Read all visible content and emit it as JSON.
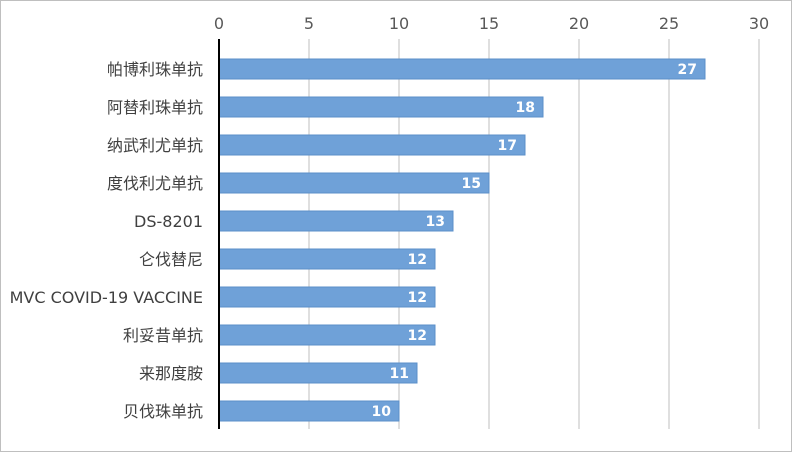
{
  "chart_data": {
    "type": "bar",
    "orientation": "horizontal",
    "categories": [
      "帕博利珠单抗",
      "阿替利珠单抗",
      "纳武利尤单抗",
      "度伐利尤单抗",
      "DS-8201",
      "仑伐替尼",
      "MVC COVID-19 VACCINE",
      "利妥昔单抗",
      "来那度胺",
      "贝伐珠单抗"
    ],
    "values": [
      27,
      18,
      17,
      15,
      13,
      12,
      12,
      12,
      11,
      10
    ],
    "xlim": [
      0,
      30
    ],
    "xticks": [
      0,
      5,
      10,
      15,
      20,
      25,
      30
    ],
    "tick_position": "top",
    "grid": "vertical",
    "data_labels": true,
    "legend": "none",
    "title": "",
    "xlabel": "",
    "ylabel": "",
    "bar_color": "#6fa1d8",
    "bar_edge_color": "#5b8fc9",
    "grid_color": "#bfbfbf",
    "axis_color": "#000000",
    "label_color": "#ffffff"
  }
}
